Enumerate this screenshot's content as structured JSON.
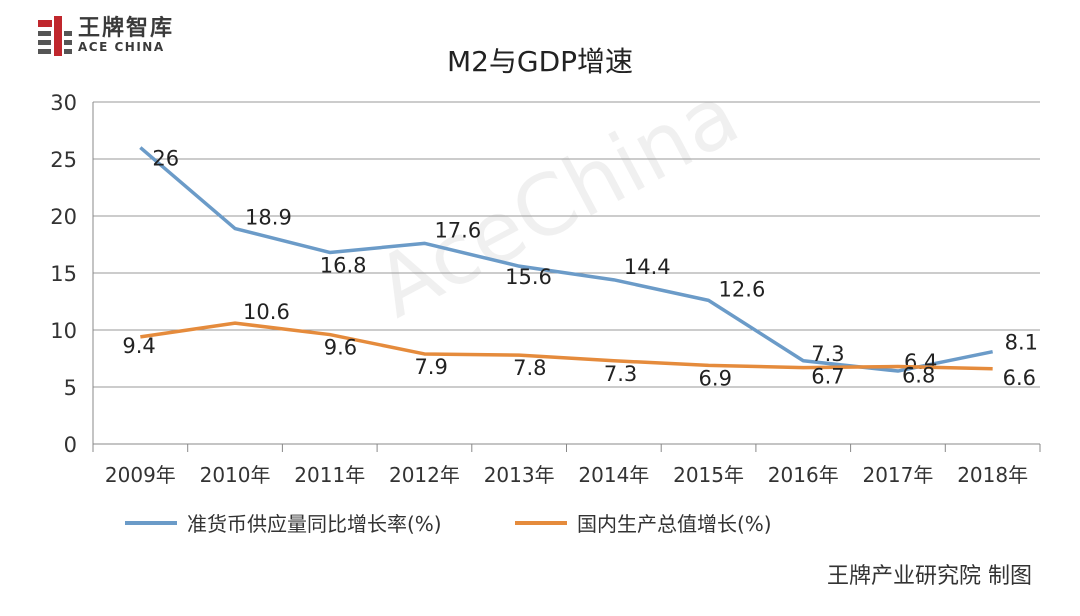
{
  "logo": {
    "cn": "王牌智库",
    "en": "ACE CHINA"
  },
  "watermark": "AceChina",
  "credit": "王牌产业研究院 制图",
  "chart_data": {
    "type": "line",
    "title": "M2与GDP增速",
    "categories": [
      "2009年",
      "2010年",
      "2011年",
      "2012年",
      "2013年",
      "2014年",
      "2015年",
      "2016年",
      "2017年",
      "2018年"
    ],
    "yticks": [
      "0",
      "5",
      "10",
      "15",
      "20",
      "25",
      "30"
    ],
    "ylim": [
      0,
      30
    ],
    "grid": true,
    "legend_position": "bottom",
    "series": [
      {
        "name": "准货币供应量同比增长率(%)",
        "color": "#6b9bc8",
        "values": [
          26,
          18.9,
          16.8,
          17.6,
          15.6,
          14.4,
          12.6,
          7.3,
          6.4,
          8.1
        ],
        "labels": [
          "26",
          "18.9",
          "16.8",
          "17.6",
          "15.6",
          "14.4",
          "12.6",
          "7.3",
          "6.4",
          "8.1"
        ]
      },
      {
        "name": "国内生产总值增长(%)",
        "color": "#e58b3c",
        "values": [
          9.4,
          10.6,
          9.6,
          7.9,
          7.8,
          7.3,
          6.9,
          6.7,
          6.8,
          6.6
        ],
        "labels": [
          "9.4",
          "10.6",
          "9.6",
          "7.9",
          "7.8",
          "7.3",
          "6.9",
          "6.7",
          "6.8",
          "6.6"
        ]
      }
    ]
  }
}
